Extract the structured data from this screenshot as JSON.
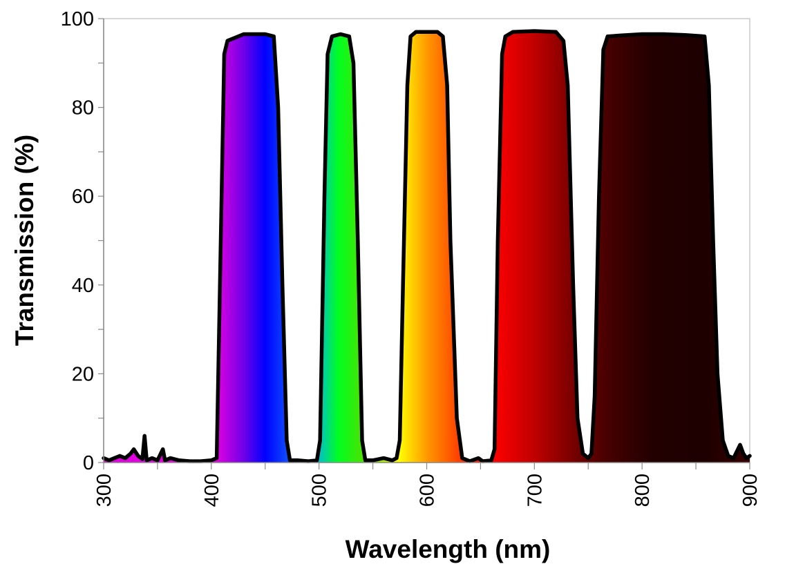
{
  "chart_data": {
    "type": "area",
    "title": "",
    "xlabel": "Wavelength (nm)",
    "ylabel": "Transmission (%)",
    "xlim": [
      300,
      900
    ],
    "ylim": [
      0,
      100
    ],
    "x_ticks": [
      300,
      400,
      500,
      600,
      700,
      800,
      900
    ],
    "x_minor_step": 50,
    "y_ticks": [
      0,
      20,
      40,
      60,
      80,
      100
    ],
    "y_minor_step": 10,
    "grid": false,
    "legend": "none",
    "line_color": "#000000",
    "fill": "spectral gradient by wavelength",
    "gradient_stops": [
      {
        "nm": 405,
        "color": "#e000e0"
      },
      {
        "nm": 430,
        "color": "#7000e8"
      },
      {
        "nm": 450,
        "color": "#0000ff"
      },
      {
        "nm": 472,
        "color": "#1050ff"
      },
      {
        "nm": 500,
        "color": "#00c0c8"
      },
      {
        "nm": 518,
        "color": "#00ff20"
      },
      {
        "nm": 542,
        "color": "#50e000"
      },
      {
        "nm": 574,
        "color": "#ffff00"
      },
      {
        "nm": 600,
        "color": "#ff9a00"
      },
      {
        "nm": 635,
        "color": "#ff3000"
      },
      {
        "nm": 662,
        "color": "#ff0000"
      },
      {
        "nm": 700,
        "color": "#c00000"
      },
      {
        "nm": 740,
        "color": "#700000"
      },
      {
        "nm": 770,
        "color": "#450000"
      },
      {
        "nm": 810,
        "color": "#220000"
      },
      {
        "nm": 860,
        "color": "#1e0000"
      },
      {
        "nm": 900,
        "color": "#3a0000"
      }
    ],
    "series": [
      {
        "x": [
          300,
          305,
          310,
          315,
          320,
          325,
          328,
          332,
          336,
          338,
          340,
          345,
          350,
          355,
          357,
          362,
          370,
          380,
          390,
          400,
          405,
          408,
          412,
          415,
          420,
          430,
          440,
          450,
          458,
          462,
          466,
          470,
          473,
          480,
          490,
          498,
          501,
          505,
          508,
          512,
          520,
          528,
          532,
          536,
          540,
          543,
          550,
          560,
          568,
          572,
          575,
          578,
          582,
          585,
          590,
          600,
          610,
          615,
          619,
          622,
          628,
          633,
          640,
          648,
          652,
          660,
          663,
          666,
          670,
          673,
          680,
          700,
          720,
          727,
          731,
          736,
          740,
          745,
          750,
          753,
          756,
          760,
          764,
          768,
          780,
          800,
          820,
          840,
          858,
          862,
          866,
          870,
          875,
          880,
          885,
          889,
          891,
          894,
          897,
          900
        ],
        "y": [
          1,
          0.5,
          1,
          1.5,
          1,
          2,
          3,
          1.5,
          0.8,
          6,
          0.5,
          1,
          0.5,
          3,
          0.5,
          1,
          0.5,
          0.3,
          0.3,
          0.5,
          1,
          40,
          92,
          95,
          95.5,
          96.5,
          96.5,
          96.5,
          96,
          80,
          40,
          5,
          0.5,
          0.5,
          0.3,
          0.5,
          5,
          60,
          92,
          96,
          96.5,
          96,
          90,
          50,
          5,
          0.5,
          0.5,
          1,
          0.5,
          1,
          5,
          40,
          85,
          96,
          97,
          97,
          97,
          96,
          85,
          50,
          10,
          1,
          0.3,
          1,
          0.3,
          0.5,
          3,
          50,
          92,
          96,
          97,
          97.2,
          97,
          95,
          85,
          40,
          10,
          2,
          1,
          2,
          15,
          60,
          93,
          96,
          96.2,
          96.5,
          96.5,
          96.3,
          96,
          85,
          50,
          20,
          5,
          1.5,
          1,
          3,
          4,
          2,
          1,
          1.5
        ]
      }
    ]
  }
}
